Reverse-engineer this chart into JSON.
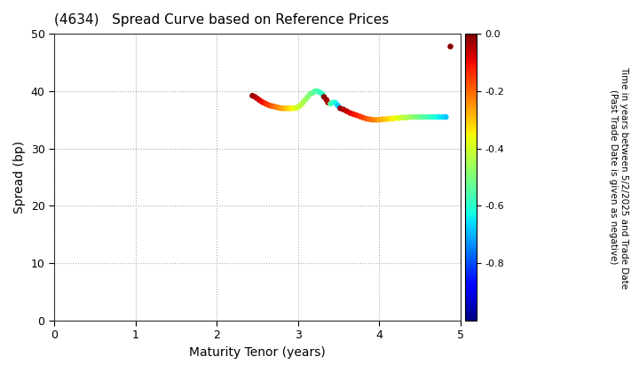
{
  "title": "(4634)   Spread Curve based on Reference Prices",
  "xlabel": "Maturity Tenor (years)",
  "ylabel": "Spread (bp)",
  "colorbar_label": "Time in years between 5/2/2025 and Trade Date\n(Past Trade Date is given as negative)",
  "xlim": [
    0,
    5
  ],
  "ylim": [
    0,
    50
  ],
  "xticks": [
    0,
    1,
    2,
    3,
    4,
    5
  ],
  "yticks": [
    0,
    10,
    20,
    30,
    40,
    50
  ],
  "cmap": "jet",
  "clim": [
    -1.0,
    0.0
  ],
  "background_color": "#ffffff",
  "grid_color": "#aaaaaa",
  "series": [
    {
      "x": [
        2.44,
        2.47,
        2.5,
        2.53,
        2.56,
        2.59,
        2.62,
        2.65,
        2.68,
        2.71,
        2.74,
        2.77,
        2.8,
        2.83,
        2.86,
        2.89,
        2.92,
        2.95,
        2.98
      ],
      "y": [
        39.2,
        39.0,
        38.7,
        38.4,
        38.1,
        37.9,
        37.7,
        37.5,
        37.4,
        37.3,
        37.2,
        37.1,
        37.0,
        37.0,
        37.0,
        37.0,
        37.0,
        37.0,
        37.1
      ],
      "c": [
        -0.02,
        -0.04,
        -0.06,
        -0.08,
        -0.1,
        -0.12,
        -0.14,
        -0.16,
        -0.18,
        -0.2,
        -0.22,
        -0.24,
        -0.26,
        -0.28,
        -0.3,
        -0.32,
        -0.34,
        -0.36,
        -0.38
      ]
    },
    {
      "x": [
        3.0,
        3.03,
        3.06,
        3.09,
        3.12,
        3.15,
        3.18,
        3.21,
        3.24,
        3.27,
        3.3
      ],
      "y": [
        37.2,
        37.5,
        38.0,
        38.5,
        39.0,
        39.5,
        39.7,
        40.0,
        40.0,
        39.8,
        39.5
      ],
      "c": [
        -0.4,
        -0.42,
        -0.44,
        -0.46,
        -0.48,
        -0.5,
        -0.52,
        -0.54,
        -0.56,
        -0.58,
        -0.6
      ]
    },
    {
      "x": [
        3.32,
        3.35,
        3.37,
        3.4,
        3.43,
        3.46,
        3.49
      ],
      "y": [
        39.0,
        38.5,
        38.0,
        37.8,
        38.0,
        38.0,
        37.5
      ],
      "c": [
        -0.01,
        -0.03,
        -0.05,
        -0.55,
        -0.58,
        -0.62,
        -0.68
      ]
    },
    {
      "x": [
        3.52,
        3.56,
        3.6,
        3.64,
        3.68,
        3.72,
        3.76,
        3.8,
        3.84,
        3.88,
        3.92,
        3.96,
        4.0,
        4.04,
        4.08,
        4.12,
        4.16,
        4.2,
        4.24,
        4.28
      ],
      "y": [
        37.0,
        36.8,
        36.5,
        36.2,
        36.0,
        35.8,
        35.6,
        35.4,
        35.2,
        35.1,
        35.0,
        35.0,
        35.0,
        35.1,
        35.1,
        35.2,
        35.2,
        35.3,
        35.3,
        35.4
      ],
      "c": [
        -0.02,
        -0.04,
        -0.06,
        -0.08,
        -0.1,
        -0.12,
        -0.14,
        -0.16,
        -0.18,
        -0.2,
        -0.22,
        -0.24,
        -0.26,
        -0.28,
        -0.3,
        -0.32,
        -0.34,
        -0.36,
        -0.38,
        -0.4
      ]
    },
    {
      "x": [
        4.3,
        4.34,
        4.38,
        4.42,
        4.46,
        4.5,
        4.54,
        4.58,
        4.62,
        4.66,
        4.7,
        4.74,
        4.78,
        4.82
      ],
      "y": [
        35.4,
        35.4,
        35.5,
        35.5,
        35.5,
        35.5,
        35.5,
        35.5,
        35.5,
        35.5,
        35.5,
        35.5,
        35.5,
        35.5
      ],
      "c": [
        -0.42,
        -0.44,
        -0.46,
        -0.48,
        -0.5,
        -0.52,
        -0.54,
        -0.56,
        -0.58,
        -0.6,
        -0.62,
        -0.64,
        -0.66,
        -0.68
      ]
    },
    {
      "x": [
        4.87
      ],
      "y": [
        47.8
      ],
      "c": [
        -0.01
      ]
    }
  ]
}
